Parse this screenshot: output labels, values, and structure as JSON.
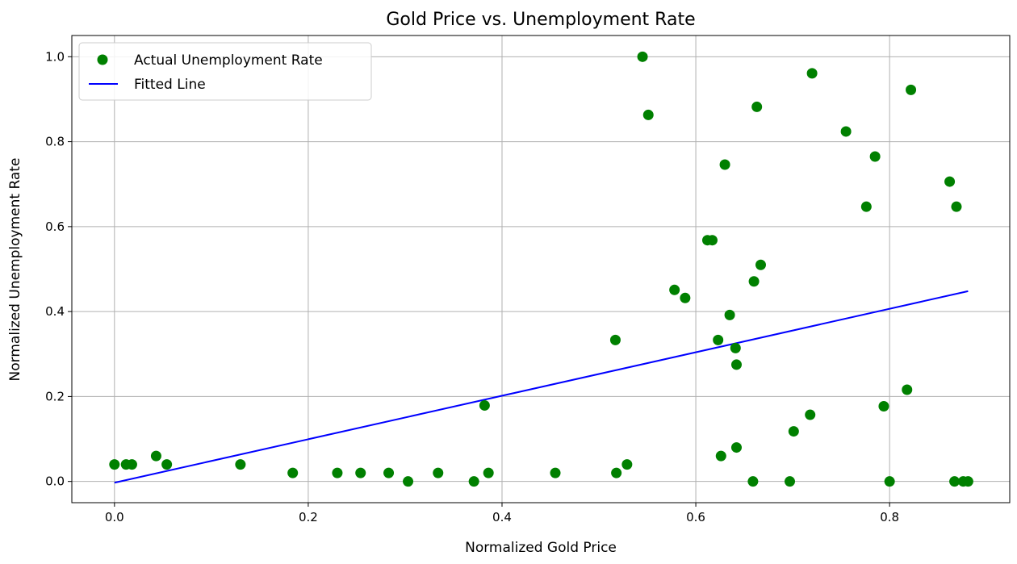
{
  "chart_data": {
    "type": "scatter",
    "title": "Gold Price vs. Unemployment Rate",
    "xlabel": "Normalized Gold Price",
    "ylabel": "Normalized Unemployment Rate",
    "xlim": [
      -0.044,
      0.924
    ],
    "ylim": [
      -0.05,
      1.05
    ],
    "xticks": [
      0.0,
      0.2,
      0.4,
      0.6,
      0.8
    ],
    "xtick_labels": [
      "0.0",
      "0.2",
      "0.4",
      "0.6",
      "0.8"
    ],
    "yticks": [
      0.0,
      0.2,
      0.4,
      0.6,
      0.8,
      1.0
    ],
    "ytick_labels": [
      "0.0",
      "0.2",
      "0.4",
      "0.6",
      "0.8",
      "1.0"
    ],
    "grid": true,
    "legend_position": "top-left",
    "series": [
      {
        "name": "Actual Unemployment Rate",
        "kind": "scatter",
        "color": "#008000",
        "points": [
          [
            0.0,
            0.04
          ],
          [
            0.012,
            0.04
          ],
          [
            0.018,
            0.04
          ],
          [
            0.043,
            0.06
          ],
          [
            0.054,
            0.04
          ],
          [
            0.13,
            0.04
          ],
          [
            0.184,
            0.02
          ],
          [
            0.23,
            0.02
          ],
          [
            0.254,
            0.02
          ],
          [
            0.283,
            0.02
          ],
          [
            0.303,
            0.0
          ],
          [
            0.334,
            0.02
          ],
          [
            0.371,
            0.0
          ],
          [
            0.382,
            0.179
          ],
          [
            0.386,
            0.02
          ],
          [
            0.455,
            0.02
          ],
          [
            0.518,
            0.02
          ],
          [
            0.517,
            0.333
          ],
          [
            0.529,
            0.04
          ],
          [
            0.545,
            1.0
          ],
          [
            0.551,
            0.863
          ],
          [
            0.578,
            0.451
          ],
          [
            0.589,
            0.432
          ],
          [
            0.612,
            0.568
          ],
          [
            0.617,
            0.568
          ],
          [
            0.623,
            0.333
          ],
          [
            0.626,
            0.06
          ],
          [
            0.63,
            0.746
          ],
          [
            0.635,
            0.392
          ],
          [
            0.641,
            0.314
          ],
          [
            0.642,
            0.275
          ],
          [
            0.642,
            0.08
          ],
          [
            0.659,
            0.0
          ],
          [
            0.66,
            0.471
          ],
          [
            0.663,
            0.882
          ],
          [
            0.667,
            0.51
          ],
          [
            0.697,
            0.0
          ],
          [
            0.701,
            0.118
          ],
          [
            0.718,
            0.157
          ],
          [
            0.72,
            0.961
          ],
          [
            0.755,
            0.824
          ],
          [
            0.776,
            0.647
          ],
          [
            0.785,
            0.765
          ],
          [
            0.794,
            0.177
          ],
          [
            0.8,
            0.0
          ],
          [
            0.818,
            0.216
          ],
          [
            0.822,
            0.922
          ],
          [
            0.862,
            0.706
          ],
          [
            0.867,
            0.0
          ],
          [
            0.869,
            0.647
          ],
          [
            0.876,
            0.0
          ],
          [
            0.881,
            0.0
          ]
        ]
      },
      {
        "name": "Fitted Line",
        "kind": "line",
        "color": "#0000ff",
        "x": [
          0.0,
          0.881
        ],
        "y": [
          -0.003,
          0.448
        ]
      }
    ]
  }
}
